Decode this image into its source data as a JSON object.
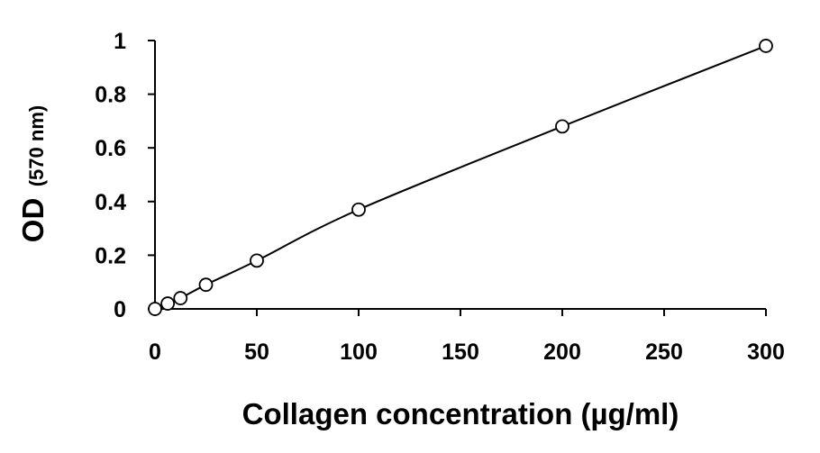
{
  "chart_data": {
    "type": "scatter",
    "title": "",
    "xlabel": "Collagen concentration (µg/ml)",
    "ylabel_main": "OD",
    "ylabel_unit": "(570 nm)",
    "xlim": [
      0,
      300
    ],
    "ylim": [
      0,
      1
    ],
    "x_ticks": [
      "0",
      "50",
      "100",
      "150",
      "200",
      "250",
      "300"
    ],
    "y_ticks": [
      "0",
      "0.2",
      "0.4",
      "0.6",
      "0.8",
      "1"
    ],
    "grid": false,
    "legend": "none",
    "marker": "open-circle",
    "fit": "smooth-curve",
    "series": [
      {
        "x": [
          0,
          6.25,
          12.5,
          25,
          50,
          100,
          200,
          300
        ],
        "y": [
          0.0,
          0.02,
          0.04,
          0.09,
          0.18,
          0.37,
          0.68,
          0.98
        ]
      }
    ],
    "colors": {
      "marker_stroke": "#000000",
      "marker_fill": "#ffffff",
      "line": "#000000",
      "axis": "#000000"
    }
  }
}
